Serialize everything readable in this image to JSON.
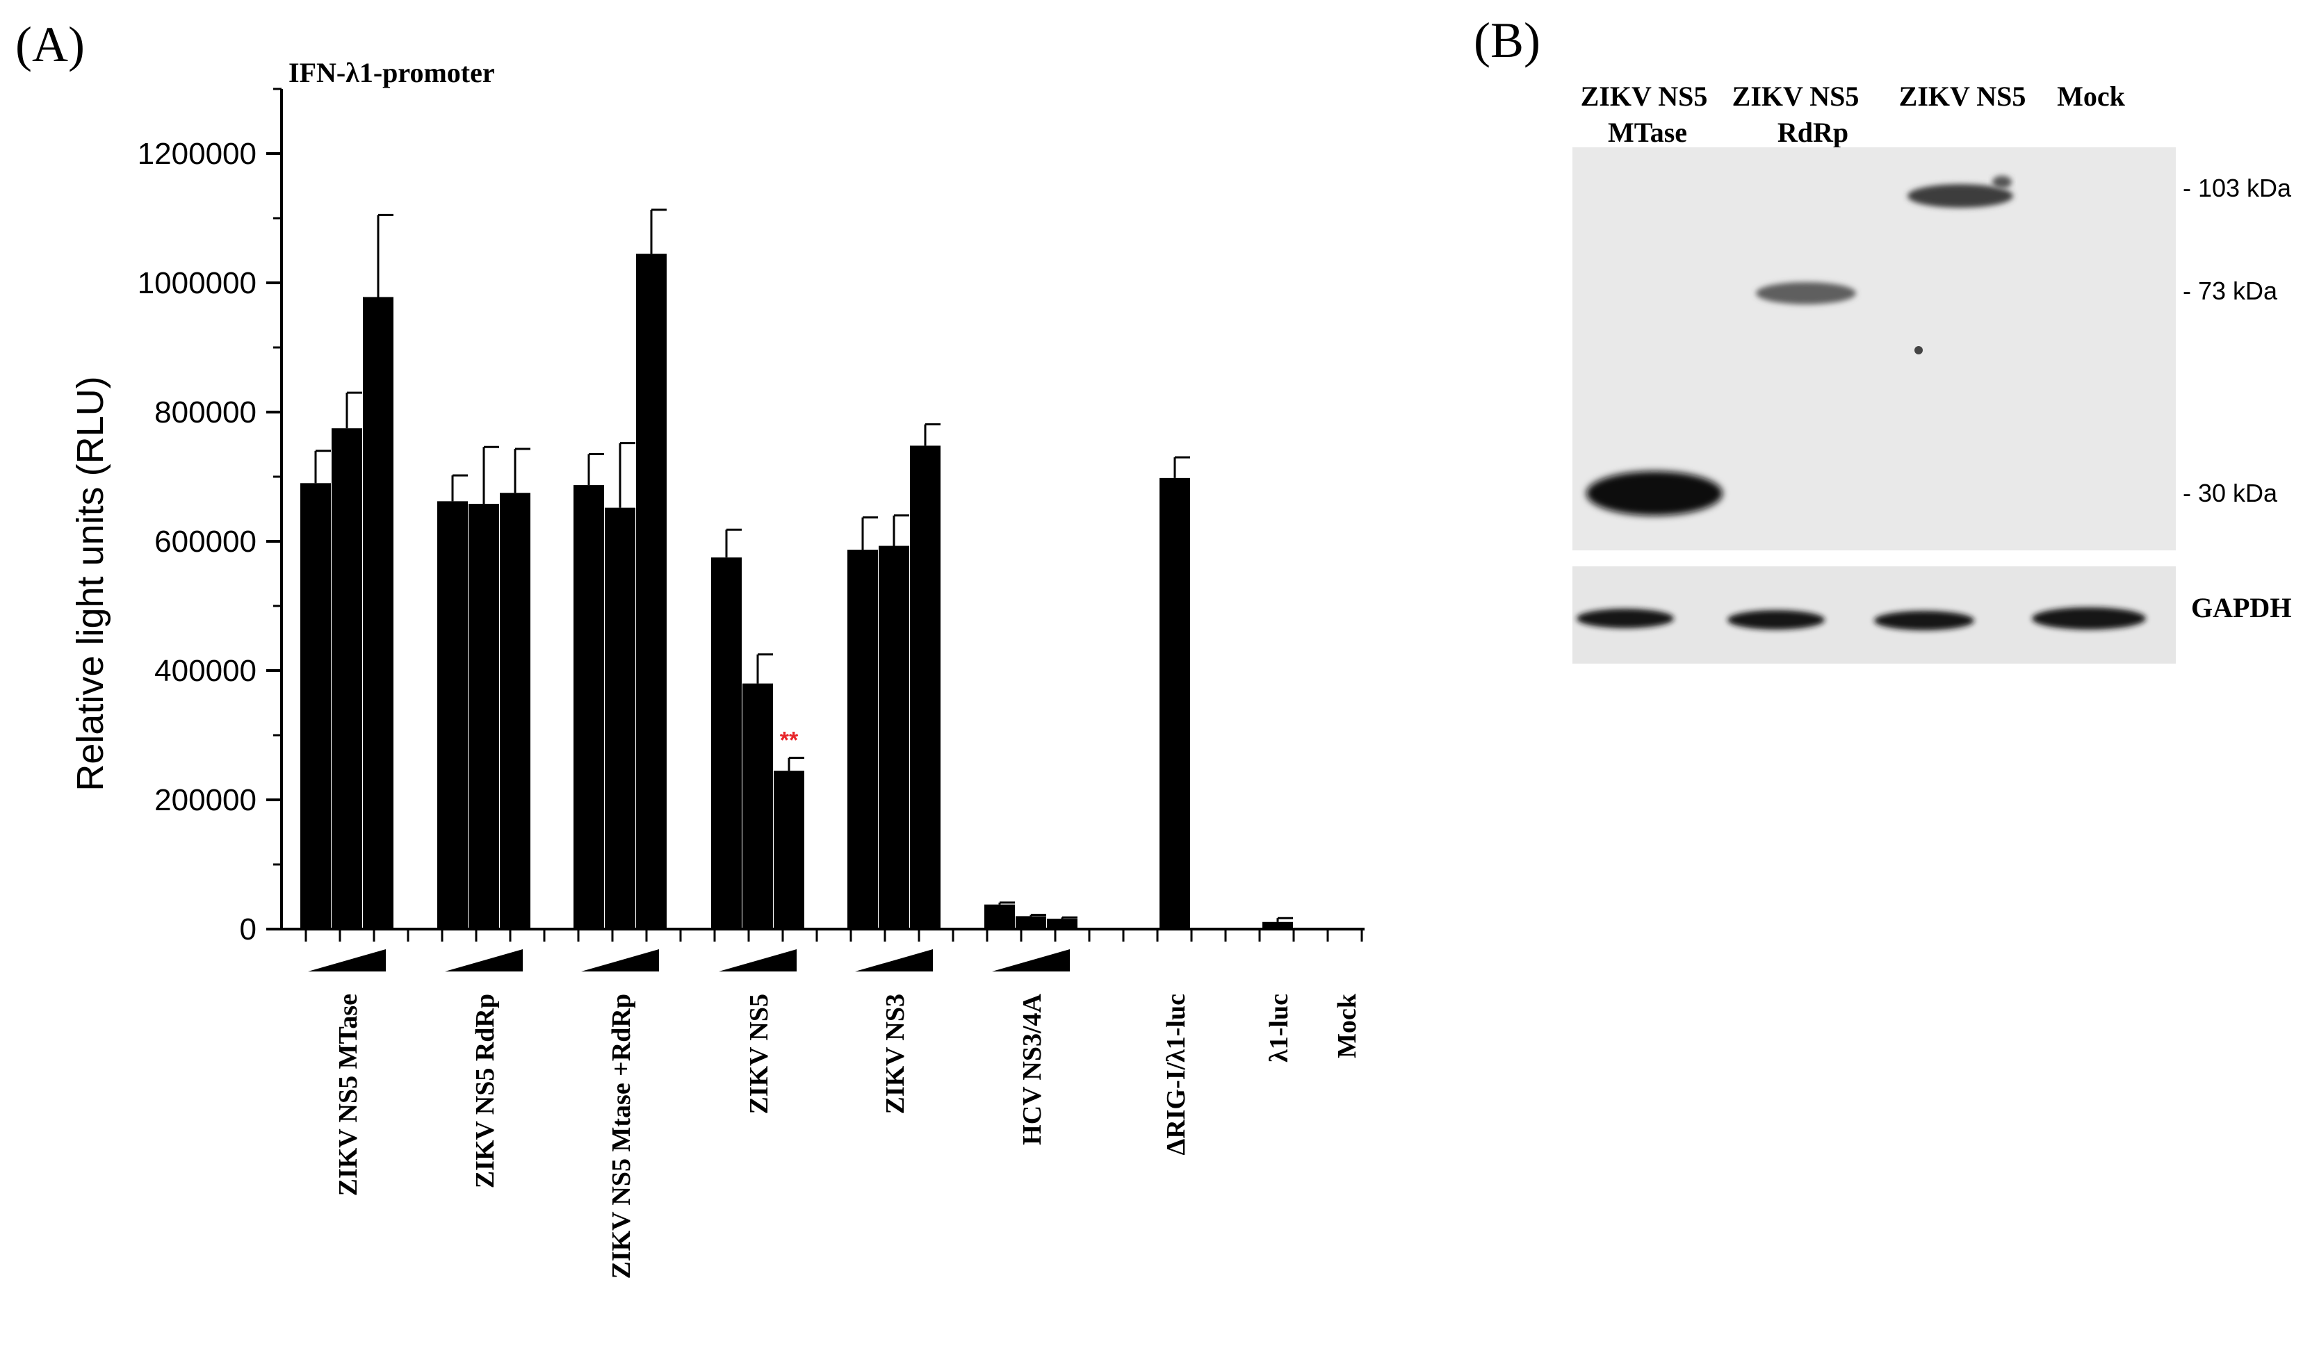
{
  "panel_a_label": "(A)",
  "panel_b_label": "(B)",
  "chart_data": {
    "type": "bar",
    "title": "IFN-λ1-promoter",
    "ylabel": "Relative light units (RLU)",
    "xlabel": "",
    "ylim": [
      0,
      1300000
    ],
    "yticks": [
      0,
      200000,
      400000,
      600000,
      800000,
      1000000,
      1200000
    ],
    "ytick_labels": [
      "0",
      "200000",
      "400000",
      "600000",
      "800000",
      "1000000",
      "1200000"
    ],
    "groups": [
      {
        "label": "ZIKV NS5 MTase",
        "values": [
          690000,
          775000,
          978000
        ],
        "errors": [
          50000,
          55000,
          127000
        ],
        "ramp": true
      },
      {
        "label": "ZIKV NS5 RdRp",
        "values": [
          662000,
          658000,
          675000
        ],
        "errors": [
          40000,
          88000,
          68000
        ],
        "ramp": true
      },
      {
        "label": "ZIKV NS5 Mtase +RdRp",
        "values": [
          687000,
          652000,
          1045000
        ],
        "errors": [
          48000,
          100000,
          68000
        ],
        "ramp": true
      },
      {
        "label": "ZIKV NS5",
        "values": [
          575000,
          380000,
          245000
        ],
        "errors": [
          43000,
          45000,
          20000
        ],
        "ramp": true,
        "annotation": "**",
        "annotation_color": "#e8252a"
      },
      {
        "label": "ZIKV NS3",
        "values": [
          587000,
          593000,
          748000
        ],
        "errors": [
          50000,
          47000,
          33000
        ],
        "ramp": true
      },
      {
        "label": "HCV NS3/4A",
        "values": [
          38000,
          20000,
          16000
        ],
        "errors": [
          3000,
          2000,
          2000
        ],
        "ramp": true
      },
      {
        "label": "ΔRIG-I/λ1-luc",
        "values": [
          698000
        ],
        "errors": [
          32000
        ],
        "ramp": false
      },
      {
        "label": "λ1-luc",
        "values": [
          11000
        ],
        "errors": [
          6000
        ],
        "ramp": false
      },
      {
        "label": "Mock",
        "values": [
          1500
        ],
        "errors": [
          0
        ],
        "ramp": false
      }
    ],
    "bar_color": "#000000",
    "grid": false
  },
  "blot": {
    "lanes": [
      {
        "label_lines": [
          "ZIKV NS5",
          "MTase"
        ]
      },
      {
        "label_lines": [
          "ZIKV NS5",
          "RdRp"
        ]
      },
      {
        "label_lines": [
          "ZIKV NS5"
        ]
      },
      {
        "label_lines": [
          "Mock"
        ]
      }
    ],
    "markers": [
      "- 103 kDa",
      "- 73 kDa",
      "- 30 kDa"
    ],
    "loading_control": "GAPDH"
  }
}
